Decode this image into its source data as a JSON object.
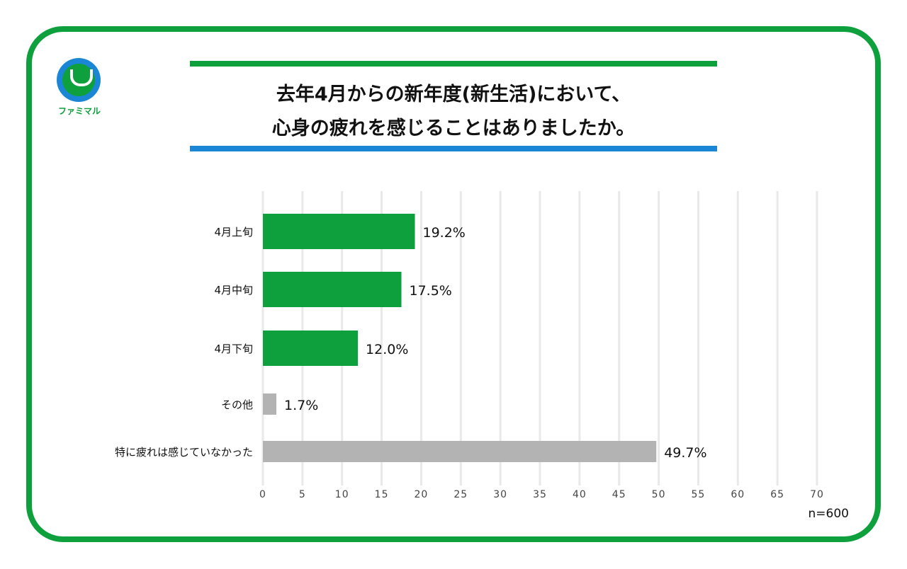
{
  "logo": {
    "text": "ファミマル"
  },
  "title_lines": [
    "去年4月からの新年度(新生活)において、",
    "心身の疲れを感じることはありましたか。"
  ],
  "note": "n=600",
  "colors": {
    "frame": "#0ea03c",
    "accent_blue": "#1b86d6",
    "bar_green": "#0ea03c",
    "bar_gray": "#b3b3b3"
  },
  "chart_data": {
    "type": "bar",
    "orientation": "horizontal",
    "categories": [
      "4月上旬",
      "4月中旬",
      "4月下旬",
      "その他",
      "特に疲れは感じていなかった"
    ],
    "values": [
      19.2,
      17.5,
      12.0,
      1.7,
      49.7
    ],
    "data_labels": [
      "19.2%",
      "17.5%",
      "12.0%",
      "1.7%",
      "49.7%"
    ],
    "bar_colors": [
      "#0ea03c",
      "#0ea03c",
      "#0ea03c",
      "#b3b3b3",
      "#b3b3b3"
    ],
    "xlim": [
      0,
      70
    ],
    "xticks": [
      0,
      5,
      10,
      15,
      20,
      25,
      30,
      35,
      40,
      45,
      50,
      55,
      60,
      65,
      70
    ],
    "grid": true
  }
}
